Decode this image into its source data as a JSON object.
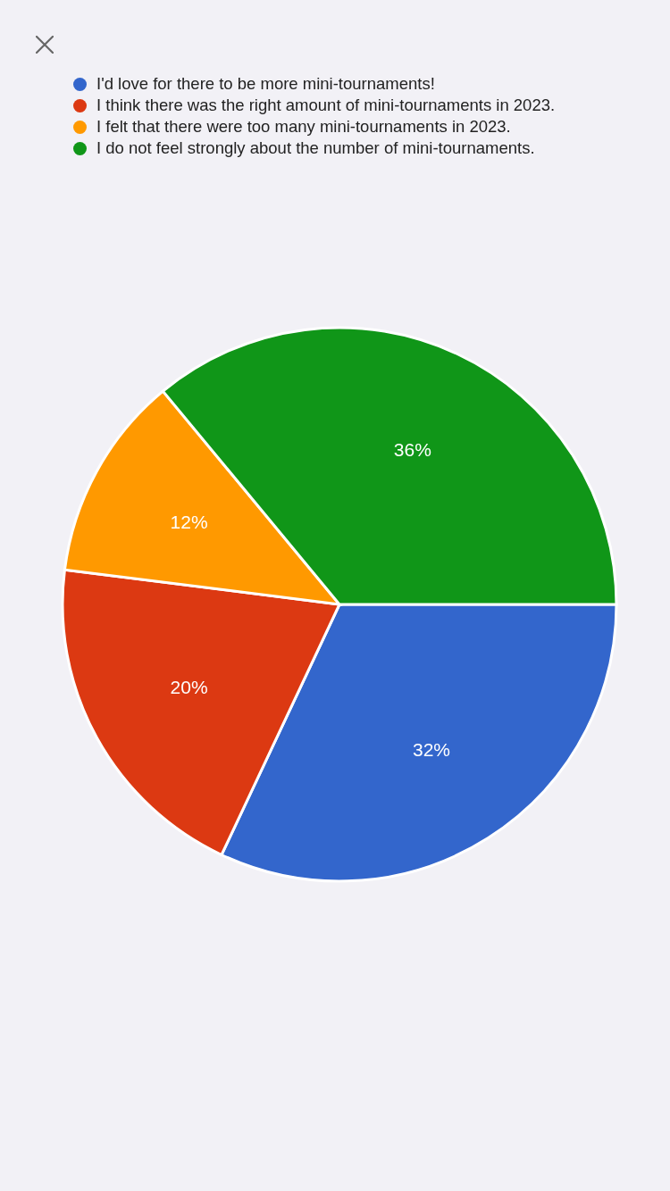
{
  "chart_data": {
    "type": "pie",
    "categories": [
      "I'd love for there to be more mini-tournaments!",
      "I think there was the right amount of mini-tournaments in 2023.",
      "I felt that there were too many mini-tournaments in 2023.",
      "I do not feel strongly about the number of mini-tournaments."
    ],
    "values": [
      32,
      20,
      12,
      36
    ],
    "colors": [
      "#3366cc",
      "#dc3912",
      "#ff9900",
      "#109618"
    ],
    "value_labels": [
      "32%",
      "20%",
      "12%",
      "36%"
    ],
    "legend": "top"
  }
}
